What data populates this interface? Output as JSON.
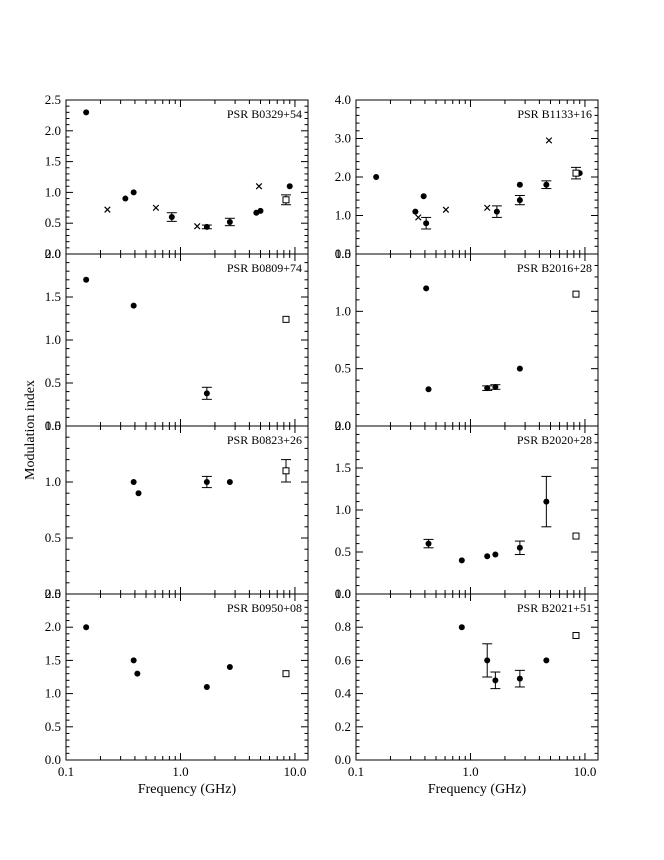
{
  "figure": {
    "ylabel": "Modulation index",
    "xlabel": "Frequency (GHz)"
  },
  "chart_data": [
    {
      "type": "scatter",
      "title": "PSR B0329+54",
      "xscale": "log",
      "xlim": [
        0.1,
        13
      ],
      "ylim": [
        0,
        2.5
      ],
      "yticks": [
        "0.0",
        "0.5",
        "1.0",
        "1.5",
        "2.0",
        "2.5"
      ],
      "series": [
        {
          "marker": "dot",
          "points": [
            {
              "x": 0.15,
              "y": 2.3
            },
            {
              "x": 0.33,
              "y": 0.9
            },
            {
              "x": 0.39,
              "y": 1.0
            },
            {
              "x": 0.84,
              "y": 0.6,
              "err": 0.07
            },
            {
              "x": 1.7,
              "y": 0.44,
              "err": 0.03
            },
            {
              "x": 2.7,
              "y": 0.52,
              "err": 0.06
            },
            {
              "x": 4.6,
              "y": 0.67
            },
            {
              "x": 5.0,
              "y": 0.7
            },
            {
              "x": 9.0,
              "y": 1.1
            }
          ]
        },
        {
          "marker": "cross",
          "points": [
            {
              "x": 0.23,
              "y": 0.72
            },
            {
              "x": 0.61,
              "y": 0.75
            },
            {
              "x": 1.4,
              "y": 0.45
            },
            {
              "x": 4.85,
              "y": 1.1
            }
          ]
        },
        {
          "marker": "square",
          "points": [
            {
              "x": 8.35,
              "y": 0.88,
              "err": 0.08
            }
          ]
        }
      ]
    },
    {
      "type": "scatter",
      "title": "PSR B1133+16",
      "xscale": "log",
      "xlim": [
        0.1,
        13
      ],
      "ylim": [
        0,
        4
      ],
      "yticks": [
        "0.0",
        "1.0",
        "2.0",
        "3.0",
        "4.0"
      ],
      "series": [
        {
          "marker": "dot",
          "points": [
            {
              "x": 0.15,
              "y": 2.0
            },
            {
              "x": 0.33,
              "y": 1.1
            },
            {
              "x": 0.39,
              "y": 1.5
            },
            {
              "x": 0.41,
              "y": 0.8,
              "err": 0.15
            },
            {
              "x": 1.7,
              "y": 1.1,
              "err": 0.15
            },
            {
              "x": 2.7,
              "y": 1.8
            },
            {
              "x": 2.7,
              "y": 1.4,
              "err": 0.12
            },
            {
              "x": 4.6,
              "y": 1.8,
              "err": 0.1
            },
            {
              "x": 9.0,
              "y": 2.1
            }
          ]
        },
        {
          "marker": "cross",
          "points": [
            {
              "x": 0.35,
              "y": 0.95
            },
            {
              "x": 0.61,
              "y": 1.15
            },
            {
              "x": 1.4,
              "y": 1.2
            },
            {
              "x": 4.85,
              "y": 2.95
            }
          ]
        },
        {
          "marker": "square",
          "points": [
            {
              "x": 8.35,
              "y": 2.1,
              "err": 0.15
            }
          ]
        }
      ]
    },
    {
      "type": "scatter",
      "title": "PSR B0809+74",
      "xscale": "log",
      "xlim": [
        0.1,
        13
      ],
      "ylim": [
        0,
        2
      ],
      "yticks": [
        "0.0",
        "0.5",
        "1.0",
        "1.5",
        "2.0"
      ],
      "series": [
        {
          "marker": "dot",
          "points": [
            {
              "x": 0.15,
              "y": 1.7
            },
            {
              "x": 0.39,
              "y": 1.4
            },
            {
              "x": 1.7,
              "y": 0.38,
              "err": 0.07
            }
          ]
        },
        {
          "marker": "square",
          "points": [
            {
              "x": 8.35,
              "y": 1.24
            }
          ]
        }
      ]
    },
    {
      "type": "scatter",
      "title": "PSR B2016+28",
      "xscale": "log",
      "xlim": [
        0.1,
        13
      ],
      "ylim": [
        0,
        1.5
      ],
      "yticks": [
        "0.0",
        "0.5",
        "1.0",
        "1.5"
      ],
      "series": [
        {
          "marker": "dot",
          "points": [
            {
              "x": 0.41,
              "y": 1.2
            },
            {
              "x": 0.43,
              "y": 0.32
            },
            {
              "x": 1.4,
              "y": 0.33,
              "err": 0.02
            },
            {
              "x": 1.65,
              "y": 0.34,
              "err": 0.02
            },
            {
              "x": 2.7,
              "y": 0.5
            }
          ]
        },
        {
          "marker": "square",
          "points": [
            {
              "x": 8.35,
              "y": 1.15
            }
          ]
        }
      ]
    },
    {
      "type": "scatter",
      "title": "PSR B0823+26",
      "xscale": "log",
      "xlim": [
        0.1,
        13
      ],
      "ylim": [
        0,
        1.5
      ],
      "yticks": [
        "0.0",
        "0.5",
        "1.0",
        "1.5"
      ],
      "series": [
        {
          "marker": "dot",
          "points": [
            {
              "x": 0.39,
              "y": 1.0
            },
            {
              "x": 0.43,
              "y": 0.9
            },
            {
              "x": 1.7,
              "y": 1.0,
              "err": 0.05
            },
            {
              "x": 2.7,
              "y": 1.0
            }
          ]
        },
        {
          "marker": "square",
          "points": [
            {
              "x": 8.35,
              "y": 1.1,
              "err": 0.1
            }
          ]
        }
      ]
    },
    {
      "type": "scatter",
      "title": "PSR B2020+28",
      "xscale": "log",
      "xlim": [
        0.1,
        13
      ],
      "ylim": [
        0,
        2
      ],
      "yticks": [
        "0.0",
        "0.5",
        "1.0",
        "1.5",
        "2.0"
      ],
      "series": [
        {
          "marker": "dot",
          "points": [
            {
              "x": 0.43,
              "y": 0.6,
              "err": 0.05
            },
            {
              "x": 0.84,
              "y": 0.4
            },
            {
              "x": 1.4,
              "y": 0.45
            },
            {
              "x": 1.65,
              "y": 0.47
            },
            {
              "x": 2.7,
              "y": 0.55,
              "err": 0.08
            },
            {
              "x": 4.6,
              "y": 1.1,
              "err": 0.3
            }
          ]
        },
        {
          "marker": "square",
          "points": [
            {
              "x": 8.35,
              "y": 0.69
            }
          ]
        }
      ]
    },
    {
      "type": "scatter",
      "title": "PSR B0950+08",
      "xscale": "log",
      "xlim": [
        0.1,
        13
      ],
      "ylim": [
        0,
        2.5
      ],
      "yticks": [
        "0.0",
        "0.5",
        "1.0",
        "1.5",
        "2.0",
        "2.5"
      ],
      "series": [
        {
          "marker": "dot",
          "points": [
            {
              "x": 0.15,
              "y": 2.0
            },
            {
              "x": 0.39,
              "y": 1.5
            },
            {
              "x": 0.42,
              "y": 1.3
            },
            {
              "x": 1.7,
              "y": 1.1
            },
            {
              "x": 2.7,
              "y": 1.4
            }
          ]
        },
        {
          "marker": "square",
          "points": [
            {
              "x": 8.35,
              "y": 1.3
            }
          ]
        }
      ]
    },
    {
      "type": "scatter",
      "title": "PSR B2021+51",
      "xscale": "log",
      "xlim": [
        0.1,
        13
      ],
      "ylim": [
        0,
        1
      ],
      "yticks": [
        "0.0",
        "0.2",
        "0.4",
        "0.6",
        "0.8",
        "1.0"
      ],
      "series": [
        {
          "marker": "dot",
          "points": [
            {
              "x": 0.84,
              "y": 0.8
            },
            {
              "x": 1.4,
              "y": 0.6,
              "err": 0.1
            },
            {
              "x": 1.65,
              "y": 0.48,
              "err": 0.05
            },
            {
              "x": 2.7,
              "y": 0.49,
              "err": 0.05
            },
            {
              "x": 4.6,
              "y": 0.6
            }
          ]
        },
        {
          "marker": "square",
          "points": [
            {
              "x": 8.35,
              "y": 0.75
            }
          ]
        }
      ]
    }
  ],
  "xticks": [
    "0.1",
    "1.0",
    "10.0"
  ]
}
